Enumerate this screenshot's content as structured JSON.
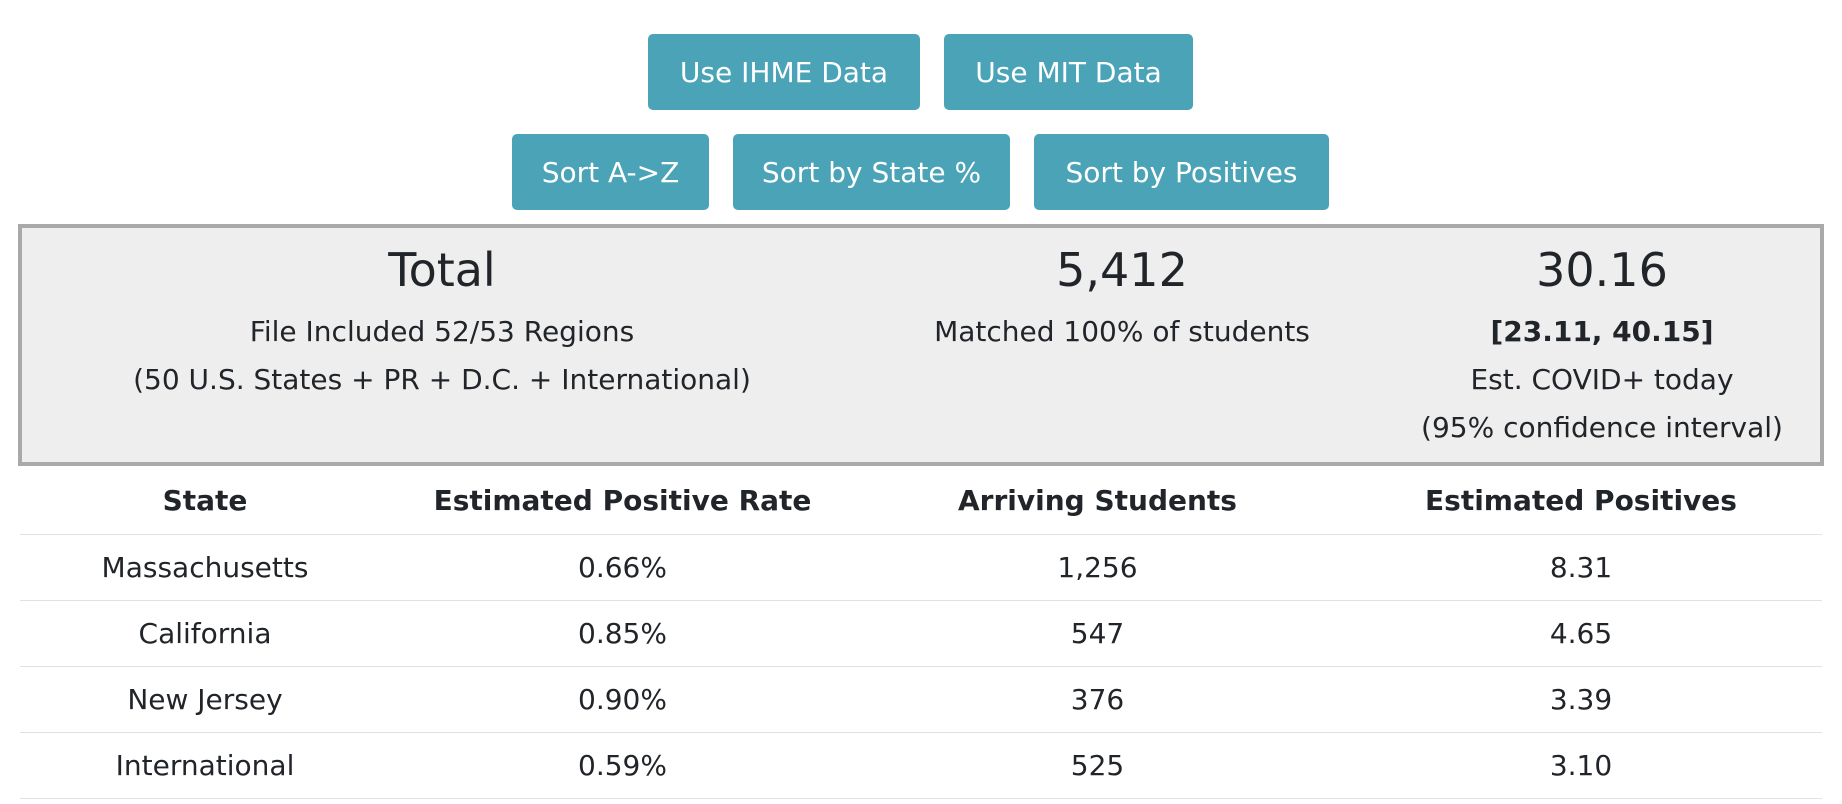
{
  "buttons": {
    "ihme": "Use IHME Data",
    "mit": "Use MIT Data",
    "sort_az": "Sort A->Z",
    "sort_state_pct": "Sort by State %",
    "sort_positives": "Sort by Positives"
  },
  "summary": {
    "total": {
      "heading": "Total",
      "line1": "File Included 52/53 Regions",
      "line2": "(50 U.S. States + PR + D.C. + International)"
    },
    "students": {
      "value": "5,412",
      "line1": "Matched 100% of students"
    },
    "estimate": {
      "value": "30.16",
      "interval": "[23.11, 40.15]",
      "line1": "Est. COVID+ today",
      "line2": "(95% confidence interval)"
    }
  },
  "table": {
    "headers": [
      "State",
      "Estimated Positive Rate",
      "Arriving Students",
      "Estimated Positives"
    ],
    "rows": [
      [
        "Massachusetts",
        "0.66%",
        "1,256",
        "8.31"
      ],
      [
        "California",
        "0.85%",
        "547",
        "4.65"
      ],
      [
        "New Jersey",
        "0.90%",
        "376",
        "3.39"
      ],
      [
        "International",
        "0.59%",
        "525",
        "3.10"
      ]
    ]
  },
  "colors": {
    "button_bg": "#4aa3b6",
    "summary_bg": "#eeeeee",
    "summary_border": "#a9a9a9"
  }
}
